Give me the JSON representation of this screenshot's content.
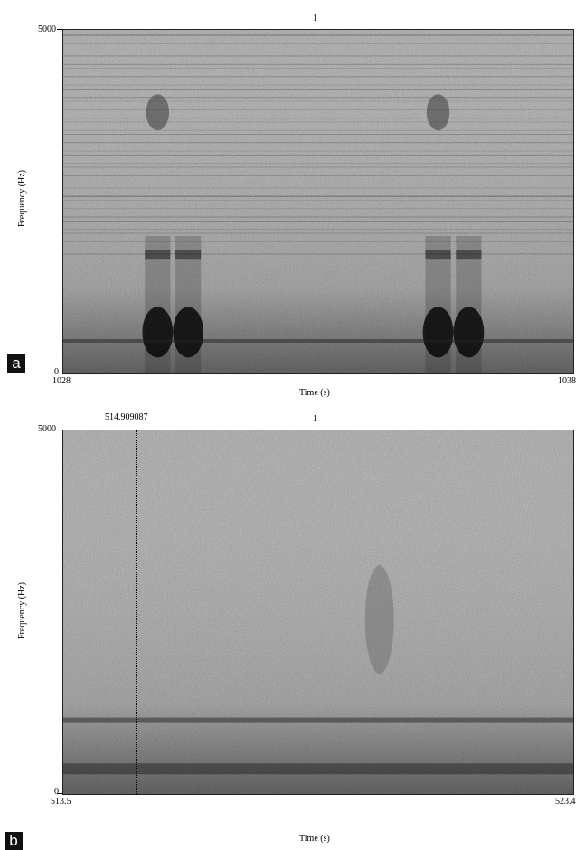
{
  "chart_data": [
    {
      "type": "heatmap",
      "panel_label": "a",
      "title": "1",
      "xlabel": "Time (s)",
      "ylabel": "Frequency (Hz)",
      "xlim": [
        1028,
        1038
      ],
      "ylim": [
        0,
        5000
      ],
      "x_tick_labels": [
        "1028",
        "1038"
      ],
      "y_tick_labels": [
        "0",
        "5000"
      ],
      "colormap": "grayscale",
      "description_events": [
        {
          "t_start": 1029.6,
          "t_end": 1030.1,
          "f_low": 0,
          "f_high": 4000
        },
        {
          "t_start": 1030.2,
          "t_end": 1030.7,
          "f_low": 0,
          "f_high": 1800
        },
        {
          "t_start": 1035.1,
          "t_end": 1035.6,
          "f_low": 0,
          "f_high": 4000
        },
        {
          "t_start": 1035.7,
          "t_end": 1036.2,
          "f_low": 0,
          "f_high": 1800
        }
      ]
    },
    {
      "type": "heatmap",
      "panel_label": "b",
      "title": "1",
      "xlabel": "Time (s)",
      "ylabel": "Frequency (Hz)",
      "xlim": [
        513.5,
        523.4
      ],
      "ylim": [
        0,
        5000
      ],
      "x_tick_labels": [
        "513.5",
        "523.4"
      ],
      "y_tick_labels": [
        "0",
        "5000"
      ],
      "cursor_time": 514.909087,
      "cursor_label": "514.909087",
      "colormap": "grayscale"
    }
  ]
}
